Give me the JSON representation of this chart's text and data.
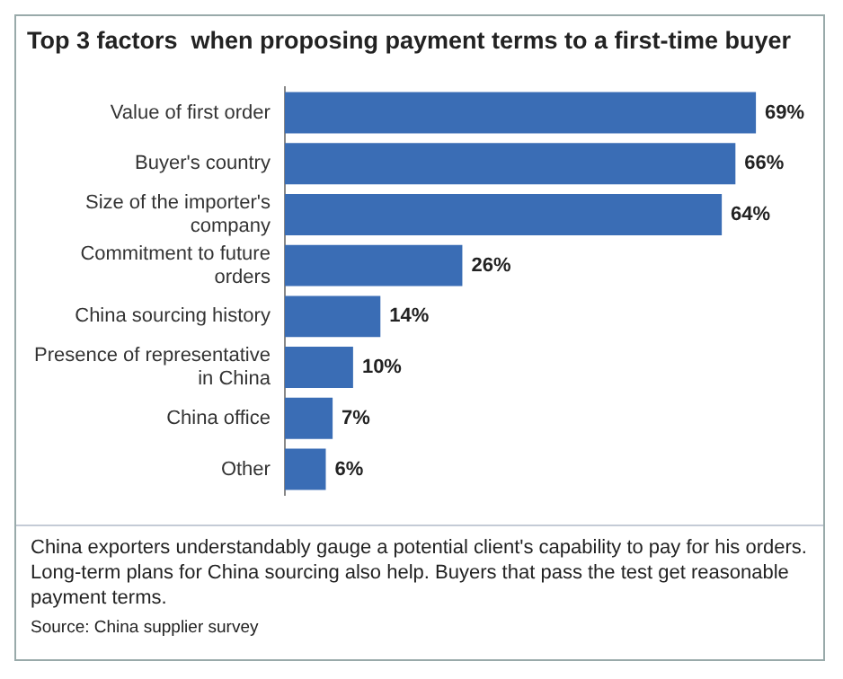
{
  "chart_data": {
    "type": "bar",
    "orientation": "horizontal",
    "title": "Top 3 factors  when proposing payment terms to a first-time buyer",
    "categories": [
      "Value of first order",
      "Buyer's country",
      "Size of the importer's company",
      "Commitment to future orders",
      "China sourcing history",
      "Presence of representative in China",
      "China office",
      "Other"
    ],
    "values": [
      69,
      66,
      64,
      26,
      14,
      10,
      7,
      6
    ],
    "value_labels": [
      "69%",
      "66%",
      "64%",
      "26%",
      "14%",
      "10%",
      "7%",
      "6%"
    ],
    "color": "#3a6db5",
    "legend": false,
    "annotations": [
      "China exporters understandably gauge a potential client's capability to pay for his orders. Long-term plans for China sourcing also help. Buyers that pass the test get reasonable payment terms.",
      "Source: China supplier survey"
    ]
  }
}
